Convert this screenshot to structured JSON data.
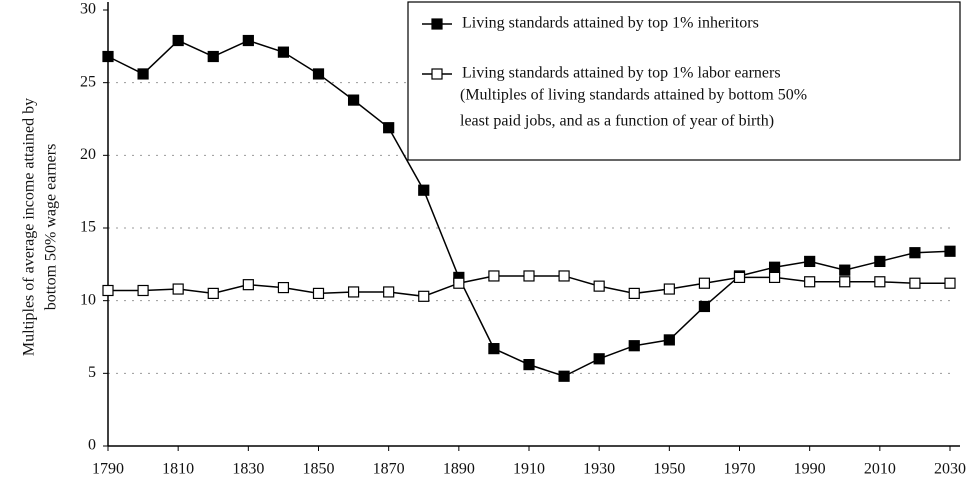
{
  "chart_data": {
    "type": "line",
    "ylabel": [
      "Multiples of average income attained by",
      "bottom 50% wage earners"
    ],
    "x": [
      1790,
      1800,
      1810,
      1820,
      1830,
      1840,
      1850,
      1860,
      1870,
      1880,
      1890,
      1900,
      1910,
      1920,
      1930,
      1940,
      1950,
      1960,
      1970,
      1980,
      1990,
      2000,
      2010,
      2020,
      2030
    ],
    "series": [
      {
        "name": "Living standards attained by top 1% inheritors",
        "color": "#000000",
        "marker": "filled",
        "values": [
          26.8,
          25.6,
          27.9,
          26.8,
          27.9,
          27.1,
          25.6,
          23.8,
          21.9,
          17.6,
          11.6,
          6.7,
          5.6,
          4.8,
          6.0,
          6.9,
          7.3,
          9.6,
          11.7,
          12.3,
          12.7,
          12.1,
          12.7,
          13.3,
          13.4
        ]
      },
      {
        "name": "Living standards attained by top 1% labor earners",
        "color": "#000000",
        "marker": "hollow",
        "values": [
          10.7,
          10.7,
          10.8,
          10.5,
          11.1,
          10.9,
          10.5,
          10.6,
          10.6,
          10.3,
          11.2,
          11.7,
          11.7,
          11.7,
          11.0,
          10.5,
          10.8,
          11.2,
          11.6,
          11.6,
          11.3,
          11.3,
          11.3,
          11.2,
          11.2
        ]
      }
    ],
    "legend_note": [
      "(Multiples of living standards attained by bottom 50%",
      "least paid jobs, and as a function of year of birth)"
    ],
    "legend": "upper right",
    "xlim": [
      1790,
      2030
    ],
    "xticks": [
      1790,
      1810,
      1830,
      1850,
      1870,
      1890,
      1910,
      1930,
      1950,
      1970,
      1990,
      2010,
      2030
    ],
    "ylim": [
      0,
      30
    ],
    "yticks": [
      0,
      5,
      10,
      15,
      20,
      25,
      30
    ],
    "grid": true
  }
}
